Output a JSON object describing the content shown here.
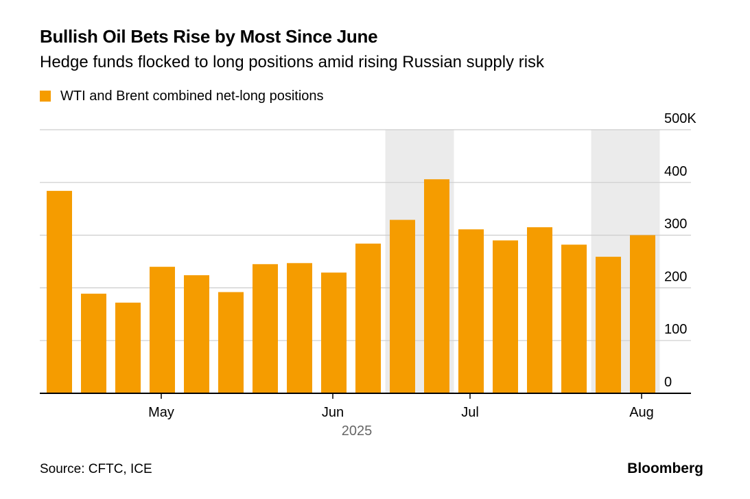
{
  "chart_data": {
    "type": "bar",
    "title": "Bullish Oil Bets Rise by Most Since June",
    "subtitle": "Hedge funds flocked to long positions amid rising Russian supply risk",
    "legend": [
      "WTI and Brent combined net-long positions"
    ],
    "series": [
      {
        "name": "WTI and Brent combined net-long positions",
        "values": [
          384,
          189,
          172,
          240,
          224,
          192,
          245,
          247,
          229,
          284,
          329,
          406,
          311,
          290,
          315,
          282,
          259,
          300
        ]
      }
    ],
    "ylim": [
      0,
      500
    ],
    "y_ticks": [
      "0",
      "100",
      "200",
      "300",
      "400",
      "500K"
    ],
    "x_tick_labels": [
      "May",
      "Jun",
      "Jul",
      "Aug"
    ],
    "x_tick_positions": [
      3.35,
      8.35,
      12.35,
      17.35
    ],
    "xlabel": "2025",
    "shaded_ranges": [
      [
        10,
        11
      ],
      [
        16,
        17
      ]
    ],
    "colors": {
      "bar": "#F59C00",
      "shade": "#EBEBEB",
      "grid": "#CCCCCC",
      "axis": "#000000"
    }
  },
  "footer": {
    "source": "Source: CFTC, ICE",
    "brand": "Bloomberg"
  }
}
